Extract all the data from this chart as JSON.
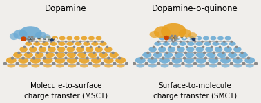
{
  "title_left": "Dopamine",
  "title_right": "Dopamine-o-quinone",
  "caption_left_line1": "Molecule-to-surface",
  "caption_left_line2": "charge transfer (MSCT)",
  "caption_right_line1": "Surface-to-molecule",
  "caption_right_line2": "charge transfer (SMCT)",
  "bg_color": "#f0eeeb",
  "title_fontsize": 8.5,
  "caption_fontsize": 7.5,
  "blue_color": "#6aaad4",
  "orange_color": "#e8a020",
  "dark_blue": "#1a3a6b",
  "gray_atom": "#999999",
  "dark_atom": "#555555",
  "white_atom": "#e8e8e8",
  "red_atom": "#cc4400",
  "graphene_gray": "#888888",
  "graphene_line": "#aaaaaa"
}
